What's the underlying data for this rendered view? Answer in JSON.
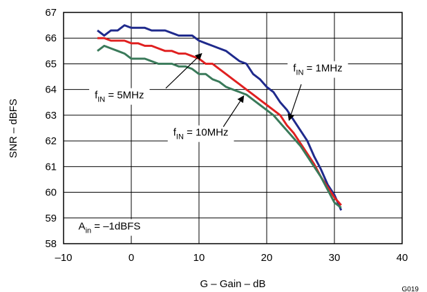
{
  "chart_data": {
    "type": "line",
    "title": "",
    "xlabel": "G – Gain – dB",
    "ylabel": "SNR – dBFS",
    "xlim": [
      -10,
      40
    ],
    "ylim": [
      58,
      67
    ],
    "xticks": [
      -10,
      0,
      10,
      20,
      30,
      40
    ],
    "yticks": [
      58,
      59,
      60,
      61,
      62,
      63,
      64,
      65,
      66,
      67
    ],
    "xtick_labels": [
      "–10",
      "0",
      "10",
      "20",
      "30",
      "40"
    ],
    "ytick_labels": [
      "58",
      "59",
      "60",
      "61",
      "62",
      "63",
      "64",
      "65",
      "66",
      "67"
    ],
    "grid": true,
    "legend": "none",
    "figure_id": "G019",
    "series": [
      {
        "color": "#1f2a8c",
        "x": [
          -5,
          -4,
          -3,
          -2,
          -1,
          0,
          1,
          2,
          3,
          4,
          5,
          6,
          7,
          8,
          9,
          10,
          11,
          12,
          13,
          14,
          15,
          16,
          17,
          18,
          19,
          20,
          21,
          22,
          23,
          24,
          25,
          26,
          27,
          28,
          29,
          30,
          31
        ],
        "y": [
          66.3,
          66.1,
          66.3,
          66.3,
          66.5,
          66.4,
          66.4,
          66.4,
          66.3,
          66.3,
          66.3,
          66.2,
          66.1,
          66.1,
          66.1,
          65.9,
          65.8,
          65.7,
          65.6,
          65.5,
          65.3,
          65.1,
          65.0,
          64.6,
          64.4,
          64.1,
          63.9,
          63.5,
          63.2,
          62.8,
          62.4,
          62.0,
          61.4,
          60.9,
          60.3,
          59.9,
          59.3
        ]
      },
      {
        "color": "#e02020",
        "x": [
          -5,
          -4,
          -3,
          -2,
          -1,
          0,
          1,
          2,
          3,
          4,
          5,
          6,
          7,
          8,
          9,
          10,
          11,
          12,
          13,
          14,
          15,
          16,
          17,
          18,
          19,
          20,
          21,
          22,
          23,
          24,
          25,
          26,
          27,
          28,
          29,
          30,
          31
        ],
        "y": [
          66.0,
          66.0,
          65.9,
          65.9,
          65.9,
          65.8,
          65.8,
          65.7,
          65.7,
          65.6,
          65.5,
          65.5,
          65.4,
          65.4,
          65.3,
          65.2,
          65.0,
          65.0,
          64.8,
          64.6,
          64.4,
          64.2,
          64.0,
          63.8,
          63.6,
          63.4,
          63.2,
          63.0,
          62.6,
          62.3,
          61.9,
          61.5,
          61.1,
          60.6,
          60.2,
          59.8,
          59.5
        ]
      },
      {
        "color": "#3a7a5a",
        "x": [
          -5,
          -4,
          -3,
          -2,
          -1,
          0,
          1,
          2,
          3,
          4,
          5,
          6,
          7,
          8,
          9,
          10,
          11,
          12,
          13,
          14,
          15,
          16,
          17,
          18,
          19,
          20,
          21,
          22,
          23,
          24,
          25,
          26,
          27,
          28,
          29,
          30,
          31
        ],
        "y": [
          65.5,
          65.7,
          65.6,
          65.5,
          65.4,
          65.2,
          65.2,
          65.2,
          65.1,
          65.0,
          65.0,
          65.0,
          64.9,
          64.9,
          64.8,
          64.6,
          64.6,
          64.4,
          64.3,
          64.1,
          64.0,
          63.9,
          63.8,
          63.6,
          63.4,
          63.2,
          63.0,
          62.7,
          62.4,
          62.1,
          61.8,
          61.4,
          61.0,
          60.6,
          60.1,
          59.6,
          59.4
        ]
      }
    ],
    "annotations": [
      {
        "name": "fin-1mhz",
        "prefix": "f",
        "sub": "IN",
        "suffix": " = 1MHz",
        "text_x": 23.9,
        "text_y": 64.7,
        "arrow_from_x": 25.1,
        "arrow_from_y": 64.2,
        "arrow_to_x": 23.3,
        "arrow_to_y": 62.8
      },
      {
        "name": "fin-5mhz",
        "prefix": "f",
        "sub": "IN",
        "suffix": " = 5MHz",
        "text_x": -5.4,
        "text_y": 63.65,
        "arrow_from_x": 5.1,
        "arrow_from_y": 64.05,
        "arrow_to_x": 10.4,
        "arrow_to_y": 65.4
      },
      {
        "name": "fin-10mhz",
        "prefix": "f",
        "sub": "IN",
        "suffix": " = 10MHz",
        "text_x": 6.2,
        "text_y": 62.2,
        "arrow_from_x": 13.6,
        "arrow_from_y": 62.55,
        "arrow_to_x": 16.6,
        "arrow_to_y": 63.75
      },
      {
        "name": "ain-label",
        "prefix": "A",
        "sub": "in",
        "suffix": " = –1dBFS",
        "text_x": -7.8,
        "text_y": 58.55
      }
    ]
  }
}
